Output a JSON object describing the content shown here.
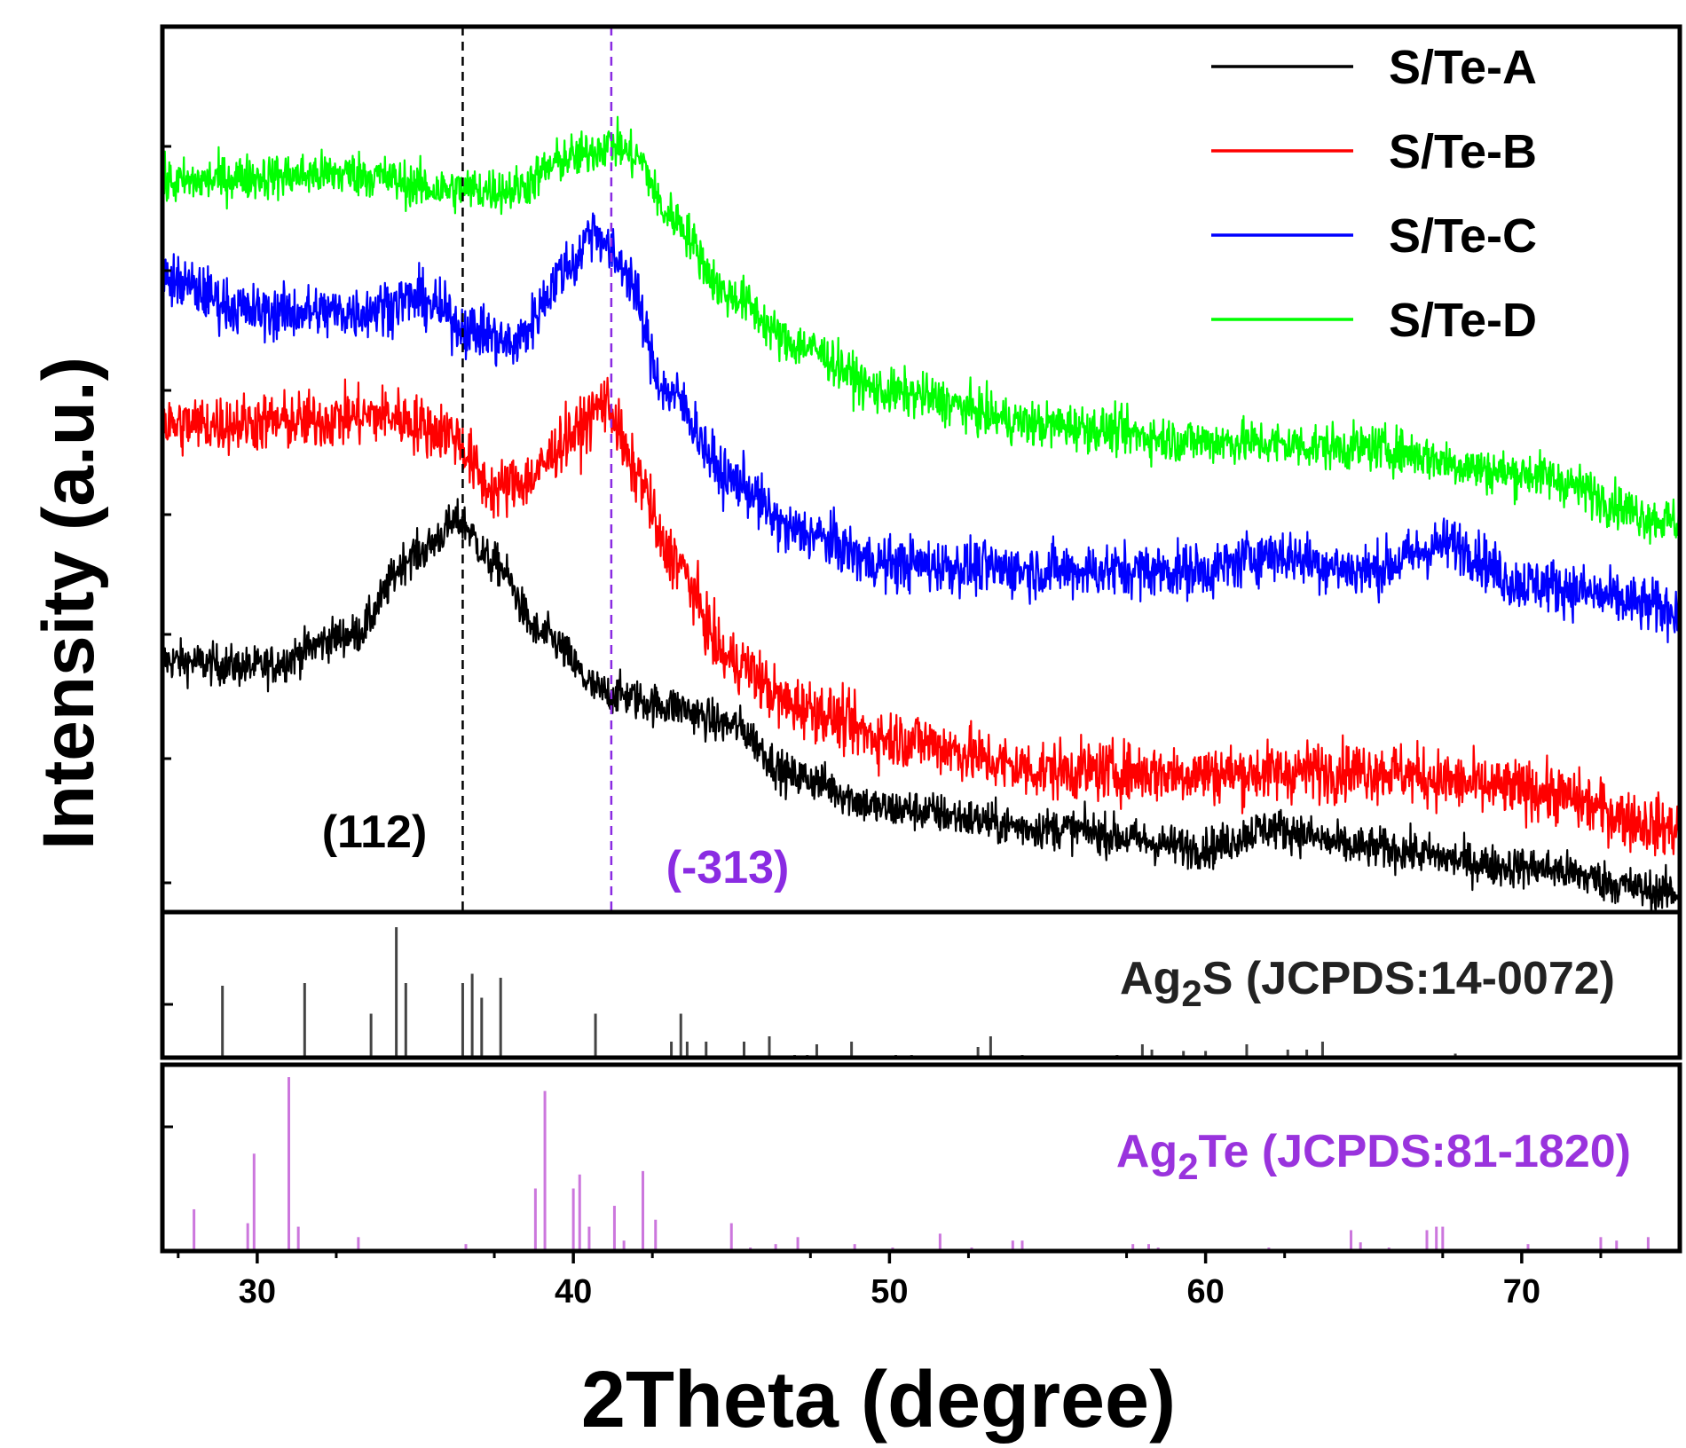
{
  "chart_data": {
    "type": "line",
    "title": "",
    "xlabel": "2Theta (degree)",
    "ylabel": "Intensity (a.u.)",
    "xlim": [
      27,
      75
    ],
    "xticks": [
      30,
      40,
      50,
      60,
      70
    ],
    "grid": false,
    "legend": {
      "placement": "top-right",
      "entries": [
        "S/Te-A",
        "S/Te-B",
        "S/Te-C",
        "S/Te-D"
      ]
    },
    "series": [
      {
        "name": "S/Te-A",
        "color": "#000000",
        "baseline": 0.0,
        "profile": [
          [
            27,
            0.62
          ],
          [
            30,
            0.6
          ],
          [
            33,
            0.7
          ],
          [
            35,
            0.95
          ],
          [
            36.4,
            1.05
          ],
          [
            37.5,
            0.92
          ],
          [
            39,
            0.7
          ],
          [
            41,
            0.52
          ],
          [
            43,
            0.48
          ],
          [
            45,
            0.42
          ],
          [
            47,
            0.26
          ],
          [
            50,
            0.16
          ],
          [
            55,
            0.1
          ],
          [
            60,
            0.04
          ],
          [
            62,
            0.1
          ],
          [
            65,
            0.04
          ],
          [
            70,
            -0.02
          ],
          [
            75,
            -0.1
          ]
        ]
      },
      {
        "name": "S/Te-B",
        "color": "#ff0000",
        "baseline": 1.05,
        "profile": [
          [
            27,
            1.35
          ],
          [
            31,
            1.36
          ],
          [
            34,
            1.38
          ],
          [
            36,
            1.33
          ],
          [
            37.5,
            1.15
          ],
          [
            38.5,
            1.18
          ],
          [
            40,
            1.32
          ],
          [
            41,
            1.42
          ],
          [
            42,
            1.2
          ],
          [
            43,
            0.95
          ],
          [
            45,
            0.62
          ],
          [
            47,
            0.48
          ],
          [
            50,
            0.38
          ],
          [
            55,
            0.28
          ],
          [
            60,
            0.27
          ],
          [
            65,
            0.28
          ],
          [
            70,
            0.22
          ],
          [
            75,
            0.1
          ]
        ]
      },
      {
        "name": "S/Te-C",
        "color": "#0000ff",
        "baseline": 1.7,
        "profile": [
          [
            27,
            1.8
          ],
          [
            30,
            1.7
          ],
          [
            33,
            1.7
          ],
          [
            35,
            1.74
          ],
          [
            37,
            1.64
          ],
          [
            38,
            1.6
          ],
          [
            40,
            1.85
          ],
          [
            40.6,
            1.96
          ],
          [
            41.5,
            1.85
          ],
          [
            43,
            1.45
          ],
          [
            45,
            1.18
          ],
          [
            47,
            1.02
          ],
          [
            50,
            0.92
          ],
          [
            55,
            0.9
          ],
          [
            60,
            0.9
          ],
          [
            62,
            0.95
          ],
          [
            65,
            0.9
          ],
          [
            67.8,
            0.98
          ],
          [
            70,
            0.86
          ],
          [
            75,
            0.78
          ]
        ]
      },
      {
        "name": "S/Te-D",
        "color": "#00ff00",
        "baseline": 2.1,
        "profile": [
          [
            27,
            2.1
          ],
          [
            30,
            2.12
          ],
          [
            33,
            2.13
          ],
          [
            36,
            2.08
          ],
          [
            38,
            2.08
          ],
          [
            40,
            2.18
          ],
          [
            41.2,
            2.22
          ],
          [
            42,
            2.18
          ],
          [
            43,
            2.0
          ],
          [
            45,
            1.75
          ],
          [
            47,
            1.6
          ],
          [
            50,
            1.45
          ],
          [
            55,
            1.35
          ],
          [
            60,
            1.3
          ],
          [
            65,
            1.28
          ],
          [
            70,
            1.2
          ],
          [
            75,
            1.05
          ]
        ]
      }
    ],
    "annotations": [
      {
        "text": "(112)",
        "x": 36.5,
        "color": "#000000",
        "line_style": "dashed"
      },
      {
        "text": "(-313)",
        "x": 41.2,
        "color": "#8a2be2",
        "line_style": "dashed"
      }
    ],
    "reference_panels": [
      {
        "name": "Ag2S",
        "label_pre": "Ag",
        "label_sub": "2",
        "label_post": "S (JCPDS:14-0072)",
        "color": "#444444",
        "peaks": [
          [
            28.9,
            0.54
          ],
          [
            31.5,
            0.56
          ],
          [
            33.6,
            0.33
          ],
          [
            34.4,
            0.98
          ],
          [
            34.7,
            0.56
          ],
          [
            36.5,
            0.56
          ],
          [
            36.8,
            0.63
          ],
          [
            37.1,
            0.45
          ],
          [
            37.7,
            0.6
          ],
          [
            40.7,
            0.33
          ],
          [
            43.1,
            0.12
          ],
          [
            43.4,
            0.33
          ],
          [
            43.6,
            0.12
          ],
          [
            44.2,
            0.12
          ],
          [
            45.4,
            0.12
          ],
          [
            46.2,
            0.16
          ],
          [
            47.0,
            0.02
          ],
          [
            47.4,
            0.02
          ],
          [
            47.7,
            0.1
          ],
          [
            48.8,
            0.12
          ],
          [
            50.2,
            0.02
          ],
          [
            50.7,
            0.02
          ],
          [
            52.8,
            0.08
          ],
          [
            53.2,
            0.16
          ],
          [
            54.2,
            0.02
          ],
          [
            57.2,
            0.02
          ],
          [
            58.0,
            0.1
          ],
          [
            58.3,
            0.06
          ],
          [
            59.3,
            0.05
          ],
          [
            60.0,
            0.05
          ],
          [
            61.3,
            0.1
          ],
          [
            62.6,
            0.06
          ],
          [
            63.2,
            0.06
          ],
          [
            63.7,
            0.12
          ],
          [
            67.9,
            0.03
          ]
        ]
      },
      {
        "name": "Ag2Te",
        "label_pre": "Ag",
        "label_sub": "2",
        "label_post": "Te (JCPDS:81-1820)",
        "color": "#cc77dd",
        "peaks": [
          [
            28.0,
            0.24
          ],
          [
            29.7,
            0.16
          ],
          [
            29.9,
            0.56
          ],
          [
            31.0,
            1.0
          ],
          [
            31.3,
            0.14
          ],
          [
            33.2,
            0.08
          ],
          [
            36.6,
            0.04
          ],
          [
            38.8,
            0.36
          ],
          [
            39.1,
            0.92
          ],
          [
            40.0,
            0.36
          ],
          [
            40.2,
            0.44
          ],
          [
            40.5,
            0.14
          ],
          [
            41.3,
            0.26
          ],
          [
            41.6,
            0.06
          ],
          [
            42.2,
            0.46
          ],
          [
            42.6,
            0.18
          ],
          [
            45.0,
            0.16
          ],
          [
            45.6,
            0.02
          ],
          [
            46.4,
            0.04
          ],
          [
            47.1,
            0.08
          ],
          [
            48.9,
            0.04
          ],
          [
            50.1,
            0.02
          ],
          [
            51.6,
            0.1
          ],
          [
            52.6,
            0.02
          ],
          [
            53.9,
            0.06
          ],
          [
            54.2,
            0.06
          ],
          [
            57.7,
            0.04
          ],
          [
            58.2,
            0.04
          ],
          [
            58.5,
            0.02
          ],
          [
            62.0,
            0.02
          ],
          [
            64.6,
            0.12
          ],
          [
            64.9,
            0.05
          ],
          [
            65.8,
            0.02
          ],
          [
            67.0,
            0.12
          ],
          [
            67.3,
            0.14
          ],
          [
            67.5,
            0.14
          ],
          [
            70.2,
            0.04
          ],
          [
            72.5,
            0.08
          ],
          [
            73.0,
            0.06
          ],
          [
            74.0,
            0.08
          ]
        ]
      }
    ]
  }
}
